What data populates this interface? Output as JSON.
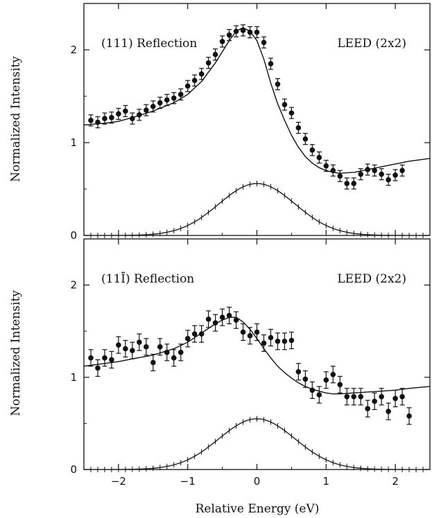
{
  "chart_data": {
    "type": "scatter",
    "xlabel": "Relative Energy (eV)",
    "xlim": [
      -2.5,
      2.5
    ],
    "xticks": [
      -2,
      -1,
      0,
      1,
      2
    ],
    "xtick_labels": [
      "−2",
      "−1",
      "0",
      "1",
      "2"
    ],
    "panels": [
      {
        "id": "top",
        "label_left": "(111) Reflection",
        "label_right": "LEED (2x2)",
        "ylabel": "Normalized Intensity",
        "ylim": [
          0,
          2.5
        ],
        "yticks": [
          0,
          1,
          2
        ],
        "ytick_labels": [
          "0",
          "1",
          "2"
        ],
        "data_points": {
          "x": [
            -2.4,
            -2.3,
            -2.2,
            -2.1,
            -2.0,
            -1.9,
            -1.8,
            -1.7,
            -1.6,
            -1.5,
            -1.4,
            -1.3,
            -1.2,
            -1.1,
            -1.0,
            -0.9,
            -0.8,
            -0.7,
            -0.6,
            -0.5,
            -0.4,
            -0.3,
            -0.2,
            -0.1,
            0.0,
            0.1,
            0.2,
            0.3,
            0.4,
            0.5,
            0.6,
            0.7,
            0.8,
            0.9,
            1.0,
            1.1,
            1.2,
            1.3,
            1.4,
            1.5,
            1.6,
            1.7,
            1.8,
            1.9,
            2.0,
            2.1
          ],
          "y": [
            1.24,
            1.22,
            1.26,
            1.27,
            1.31,
            1.34,
            1.26,
            1.3,
            1.35,
            1.39,
            1.43,
            1.46,
            1.48,
            1.52,
            1.61,
            1.67,
            1.74,
            1.86,
            1.95,
            2.09,
            2.16,
            2.2,
            2.21,
            2.19,
            2.19,
            2.08,
            1.85,
            1.63,
            1.41,
            1.32,
            1.16,
            1.04,
            0.92,
            0.84,
            0.75,
            0.7,
            0.64,
            0.56,
            0.56,
            0.66,
            0.71,
            0.7,
            0.66,
            0.6,
            0.65,
            0.7
          ],
          "error": 0.06
        },
        "fit_curve": {
          "x": [
            -2.5,
            -2.2,
            -2.0,
            -1.8,
            -1.5,
            -1.2,
            -1.0,
            -0.8,
            -0.6,
            -0.5,
            -0.4,
            -0.3,
            -0.2,
            -0.1,
            0.0,
            0.1,
            0.2,
            0.3,
            0.4,
            0.5,
            0.6,
            0.7,
            0.8,
            0.9,
            1.0,
            1.1,
            1.2,
            1.4,
            1.6,
            1.8,
            2.0,
            2.2,
            2.5
          ],
          "y": [
            1.19,
            1.21,
            1.23,
            1.27,
            1.34,
            1.43,
            1.52,
            1.66,
            1.86,
            1.98,
            2.1,
            2.2,
            2.24,
            2.2,
            2.1,
            1.9,
            1.64,
            1.42,
            1.24,
            1.08,
            0.95,
            0.85,
            0.78,
            0.73,
            0.7,
            0.68,
            0.67,
            0.68,
            0.71,
            0.74,
            0.77,
            0.8,
            0.83
          ]
        },
        "peak_curve": {
          "center": 0.0,
          "amplitude": 0.56,
          "width": 0.55,
          "x_range": [
            -2.5,
            2.5
          ]
        }
      },
      {
        "id": "bottom",
        "label_left": "(11Ī) Reflection",
        "label_right": "LEED (2x2)",
        "ylabel": "Normalized Intensity",
        "ylim": [
          0,
          2.5
        ],
        "yticks": [
          0,
          1,
          2
        ],
        "ytick_labels": [
          "0",
          "1",
          "2"
        ],
        "data_points": {
          "x": [
            -2.4,
            -2.3,
            -2.2,
            -2.1,
            -2.0,
            -1.9,
            -1.8,
            -1.7,
            -1.6,
            -1.5,
            -1.4,
            -1.3,
            -1.2,
            -1.1,
            -1.0,
            -0.9,
            -0.8,
            -0.7,
            -0.6,
            -0.5,
            -0.4,
            -0.3,
            -0.2,
            -0.1,
            0.0,
            0.1,
            0.2,
            0.3,
            0.4,
            0.5,
            0.6,
            0.7,
            0.8,
            0.9,
            1.0,
            1.1,
            1.2,
            1.3,
            1.4,
            1.5,
            1.6,
            1.7,
            1.8,
            1.9,
            2.0,
            2.1,
            2.2
          ],
          "y": [
            1.21,
            1.1,
            1.21,
            1.19,
            1.35,
            1.31,
            1.29,
            1.38,
            1.33,
            1.16,
            1.33,
            1.27,
            1.21,
            1.27,
            1.42,
            1.47,
            1.47,
            1.63,
            1.59,
            1.65,
            1.67,
            1.62,
            1.49,
            1.45,
            1.49,
            1.37,
            1.43,
            1.39,
            1.39,
            1.4,
            1.06,
            0.98,
            0.86,
            0.81,
            0.97,
            1.03,
            0.92,
            0.79,
            0.79,
            0.79,
            0.66,
            0.74,
            0.79,
            0.63,
            0.77,
            0.79,
            0.58
          ],
          "error": 0.09
        },
        "fit_curve": {
          "x": [
            -2.5,
            -2.2,
            -2.0,
            -1.8,
            -1.5,
            -1.2,
            -1.0,
            -0.8,
            -0.6,
            -0.5,
            -0.4,
            -0.3,
            -0.2,
            -0.1,
            0.0,
            0.1,
            0.2,
            0.3,
            0.4,
            0.5,
            0.6,
            0.7,
            0.8,
            0.9,
            1.0,
            1.1,
            1.2,
            1.4,
            1.6,
            1.8,
            2.0,
            2.2,
            2.5
          ],
          "y": [
            1.12,
            1.15,
            1.17,
            1.2,
            1.24,
            1.31,
            1.38,
            1.48,
            1.58,
            1.62,
            1.65,
            1.65,
            1.6,
            1.52,
            1.42,
            1.31,
            1.21,
            1.12,
            1.05,
            0.99,
            0.94,
            0.9,
            0.87,
            0.85,
            0.83,
            0.82,
            0.82,
            0.83,
            0.84,
            0.85,
            0.86,
            0.88,
            0.9
          ]
        },
        "peak_curve": {
          "center": 0.0,
          "amplitude": 0.55,
          "width": 0.55,
          "x_range": [
            -2.5,
            2.5
          ]
        }
      }
    ]
  }
}
